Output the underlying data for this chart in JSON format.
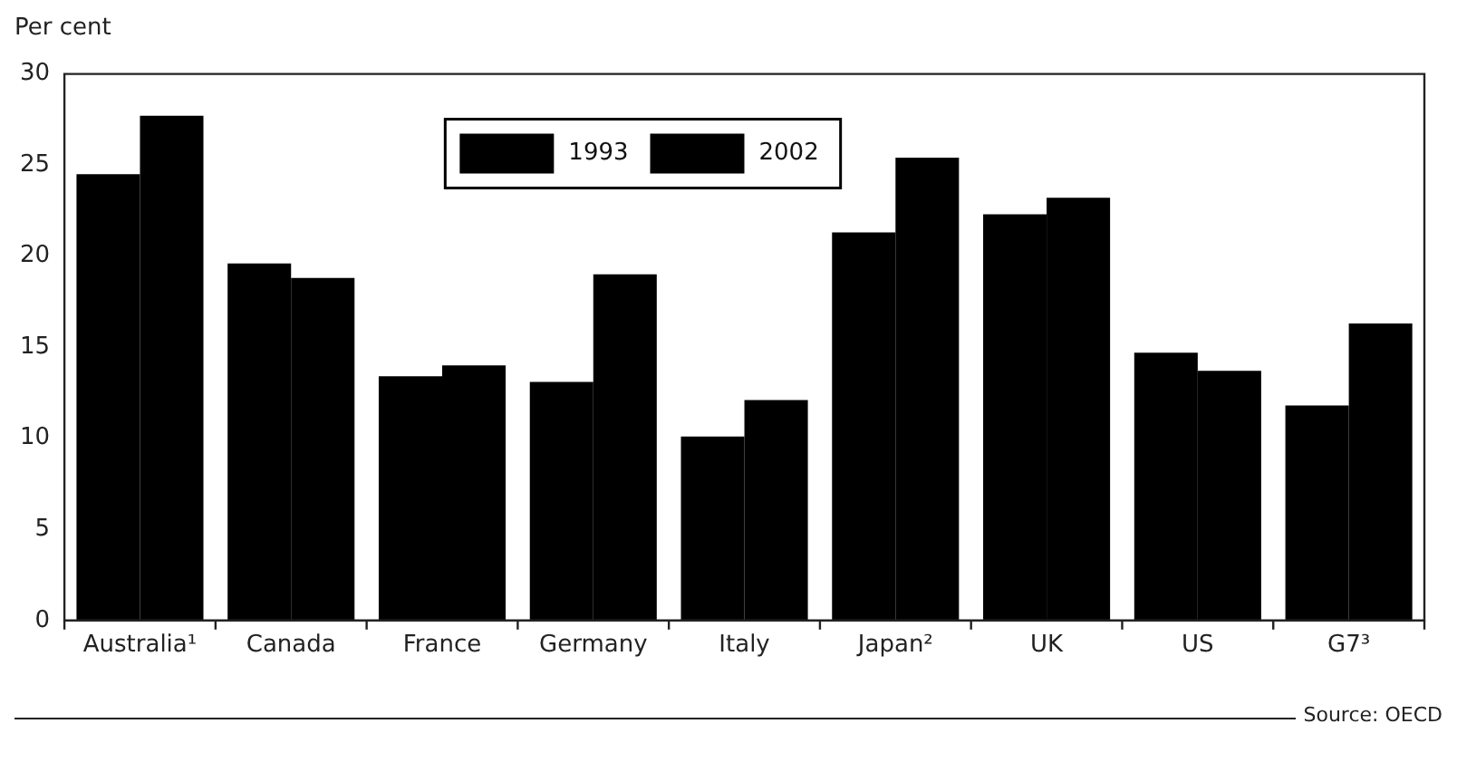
{
  "chart_data": {
    "type": "bar",
    "ylabel": "Per cent",
    "categories": [
      "Australia¹",
      "Canada",
      "France",
      "Germany",
      "Italy",
      "Japan²",
      "UK",
      "US",
      "G7³"
    ],
    "series": [
      {
        "name": "1993",
        "color": "#000000",
        "values": [
          24.5,
          19.6,
          13.4,
          13.1,
          10.1,
          21.3,
          22.3,
          14.7,
          11.8
        ]
      },
      {
        "name": "2002",
        "color": "#000000",
        "values": [
          27.7,
          18.8,
          14.0,
          19.0,
          12.1,
          25.4,
          23.2,
          13.7,
          16.3
        ]
      }
    ],
    "ylim": [
      0,
      30
    ],
    "yticks": [
      0,
      5,
      10,
      15,
      20,
      25,
      30
    ],
    "grid": false,
    "legend": "top",
    "annotations": [
      "Source: OECD"
    ]
  }
}
